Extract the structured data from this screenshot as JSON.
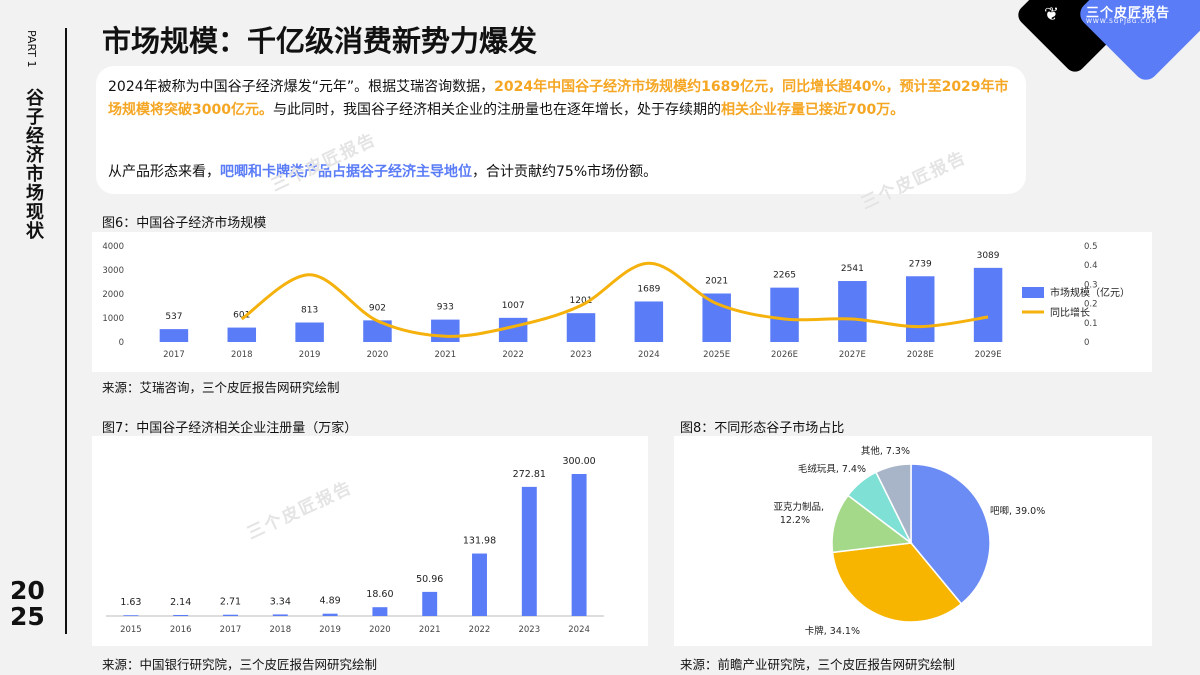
{
  "sidebar": {
    "part": "PART 1",
    "title": "谷子经济市场现状",
    "year_top": "20",
    "year_bottom": "25"
  },
  "header": {
    "title": "市场规模：千亿级消费新势力爆发"
  },
  "logo": {
    "name": "三个皮匠报告",
    "sub": "WWW.SGPJBG.COM"
  },
  "watermark": "三个皮匠报告",
  "summary": {
    "p1": [
      {
        "t": "2024年被称为中国谷子经济爆发“元年”。根据艾瑞咨询数据，",
        "s": "n"
      },
      {
        "t": "2024年中国谷子经济市场规模约1689亿元，同比增长超40%，预计至2029年市场规模将突破3000亿元。",
        "s": "o"
      },
      {
        "t": "与此同时，我国谷子经济相关企业的注册量也在逐年增长，处于存续期的",
        "s": "n"
      },
      {
        "t": "相关企业存量已接近700万。",
        "s": "o"
      }
    ],
    "p2": [
      {
        "t": "从产品形态来看，",
        "s": "n"
      },
      {
        "t": "吧唧和卡牌类产品占据谷子经济主导地位",
        "s": "b"
      },
      {
        "t": "，合计贡献约75%市场份额。",
        "s": "n"
      }
    ]
  },
  "fig6": {
    "title": "图6：中国谷子经济市场规模",
    "source": "来源：艾瑞咨询，三个皮匠报告网研究绘制"
  },
  "fig7": {
    "title": "图7：中国谷子经济相关企业注册量（万家）",
    "source": "来源：中国银行研究院，三个皮匠报告网研究绘制"
  },
  "fig8": {
    "title": "图8：不同形态谷子市场占比",
    "source": "来源：前瞻产业研究院，三个皮匠报告网研究绘制"
  },
  "colors": {
    "bar": "#5b7cf7",
    "line": "#f5b10c",
    "pie": [
      "#6c8cf5",
      "#f7b500",
      "#a5d98a",
      "#7fe0d6",
      "#a8b4c8"
    ],
    "axis": "#444444"
  },
  "chart_data": [
    {
      "type": "bar",
      "categories": [
        "2017",
        "2018",
        "2019",
        "2020",
        "2021",
        "2022",
        "2023",
        "2024",
        "2025E",
        "2026E",
        "2027E",
        "2028E",
        "2029E"
      ],
      "series": [
        {
          "name": "市场规模（亿元）",
          "values": [
            537,
            601,
            813,
            902,
            933,
            1007,
            1201,
            1689,
            2021,
            2265,
            2541,
            2739,
            3089
          ],
          "axis": "left",
          "kind": "bar"
        },
        {
          "name": "同比增长",
          "values": [
            null,
            0.12,
            0.35,
            0.11,
            0.03,
            0.08,
            0.19,
            0.41,
            0.2,
            0.12,
            0.12,
            0.08,
            0.13
          ],
          "axis": "right",
          "kind": "line"
        }
      ],
      "ylim": [
        0,
        4000
      ],
      "yticks": [
        0,
        1000,
        2000,
        3000,
        4000
      ],
      "y2lim": [
        0,
        0.5
      ],
      "y2ticks": [
        0,
        0.1,
        0.2,
        0.3,
        0.4,
        0.5
      ],
      "legend": "right"
    },
    {
      "type": "bar",
      "categories": [
        "2015",
        "2016",
        "2017",
        "2018",
        "2019",
        "2020",
        "2021",
        "2022",
        "2023",
        "2024"
      ],
      "values": [
        1.63,
        2.14,
        2.71,
        3.34,
        4.89,
        18.6,
        50.96,
        131.98,
        272.81,
        300.0
      ],
      "labels": [
        "1.63",
        "2.14",
        "2.71",
        "3.34",
        "4.89",
        "18.60",
        "50.96",
        "131.98",
        "272.81",
        "300.00"
      ],
      "ylim": [
        0,
        300
      ]
    },
    {
      "type": "pie",
      "slices": [
        {
          "label": "吧唧",
          "value": 39.0,
          "text": "吧唧, 39.0%"
        },
        {
          "label": "卡牌",
          "value": 34.1,
          "text": "卡牌, 34.1%"
        },
        {
          "label": "亚克力制品",
          "value": 12.2,
          "text": "亚克力制品, 12.2%"
        },
        {
          "label": "毛绒玩具",
          "value": 7.4,
          "text": "毛绒玩具, 7.4%"
        },
        {
          "label": "其他",
          "value": 7.3,
          "text": "其他, 7.3%"
        }
      ]
    }
  ]
}
